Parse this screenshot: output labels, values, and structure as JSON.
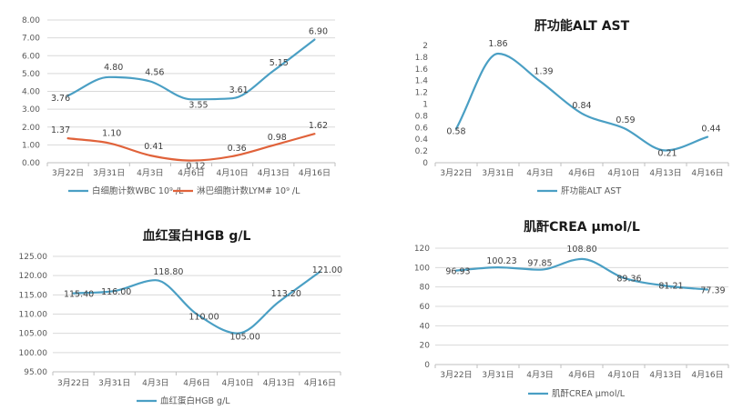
{
  "chart_data": [
    {
      "type": "line",
      "title": "",
      "categories": [
        "3月22日",
        "3月31日",
        "4月3日",
        "4月6日",
        "4月10日",
        "4月13日",
        "4月16日"
      ],
      "ylim": [
        0,
        8
      ],
      "yticks": [
        "0.00",
        "1.00",
        "2.00",
        "3.00",
        "4.00",
        "5.00",
        "6.00",
        "7.00",
        "8.00"
      ],
      "grid": true,
      "legend_position": "bottom",
      "series": [
        {
          "name": "白细胞计数WBC 10⁹ /L",
          "color": "#4a9fc4",
          "values": [
            3.76,
            4.8,
            4.56,
            3.55,
            3.61,
            5.15,
            6.9
          ],
          "labels": [
            "3.76",
            "4.80",
            "4.56",
            "3.55",
            "3.61",
            "5.15",
            "6.90"
          ]
        },
        {
          "name": "淋巴细胞计数LYM# 10⁹ /L",
          "color": "#e0623a",
          "values": [
            1.37,
            1.1,
            0.41,
            0.12,
            0.36,
            0.98,
            1.62
          ],
          "labels": [
            "1.37",
            "1.10",
            "0.41",
            "0.12",
            "0.36",
            "0.98",
            "1.62"
          ]
        }
      ]
    },
    {
      "type": "line",
      "title": "肝功能ALT AST",
      "categories": [
        "3月22日",
        "3月31日",
        "4月3日",
        "4月6日",
        "4月10日",
        "4月13日",
        "4月16日"
      ],
      "ylim": [
        0,
        2
      ],
      "yticks": [
        "0",
        "0.2",
        "0.4",
        "0.6",
        "0.8",
        "1",
        "1.2",
        "1.4",
        "1.6",
        "1.8",
        "2"
      ],
      "grid": false,
      "legend_position": "bottom",
      "series": [
        {
          "name": "肝功能ALT AST",
          "color": "#4a9fc4",
          "values": [
            0.58,
            1.86,
            1.39,
            0.84,
            0.59,
            0.21,
            0.44
          ],
          "labels": [
            "0.58",
            "1.86",
            "1.39",
            "0.84",
            "0.59",
            "0.21",
            "0.44"
          ]
        }
      ]
    },
    {
      "type": "line",
      "title": "血红蛋白HGB g/L",
      "categories": [
        "3月22日",
        "3月31日",
        "4月3日",
        "4月6日",
        "4月10日",
        "4月13日",
        "4月16日"
      ],
      "ylim": [
        95,
        125
      ],
      "yticks": [
        "95.00",
        "100.00",
        "105.00",
        "110.00",
        "115.00",
        "120.00",
        "125.00"
      ],
      "grid": true,
      "legend_position": "bottom",
      "series": [
        {
          "name": "血红蛋白HGB g/L",
          "color": "#4a9fc4",
          "values": [
            115.4,
            116.0,
            118.8,
            110.0,
            105.0,
            113.2,
            121.0
          ],
          "labels": [
            "115.40",
            "116.00",
            "118.80",
            "110.00",
            "105.00",
            "113.20",
            "121.00"
          ]
        }
      ]
    },
    {
      "type": "line",
      "title": "肌酐CREA μmol/L",
      "categories": [
        "3月22日",
        "3月31日",
        "4月3日",
        "4月6日",
        "4月10日",
        "4月13日",
        "4月16日"
      ],
      "ylim": [
        0,
        120
      ],
      "yticks": [
        "0",
        "20",
        "40",
        "60",
        "80",
        "100",
        "120"
      ],
      "grid": true,
      "legend_position": "bottom",
      "series": [
        {
          "name": "肌酐CREA μmol/L",
          "color": "#4a9fc4",
          "values": [
            96.93,
            100.23,
            97.85,
            108.8,
            89.36,
            81.21,
            77.39
          ],
          "labels": [
            "96.93",
            "100.23",
            "97.85",
            "108.80",
            "89.36",
            "81.21",
            "77.39"
          ]
        }
      ]
    }
  ]
}
